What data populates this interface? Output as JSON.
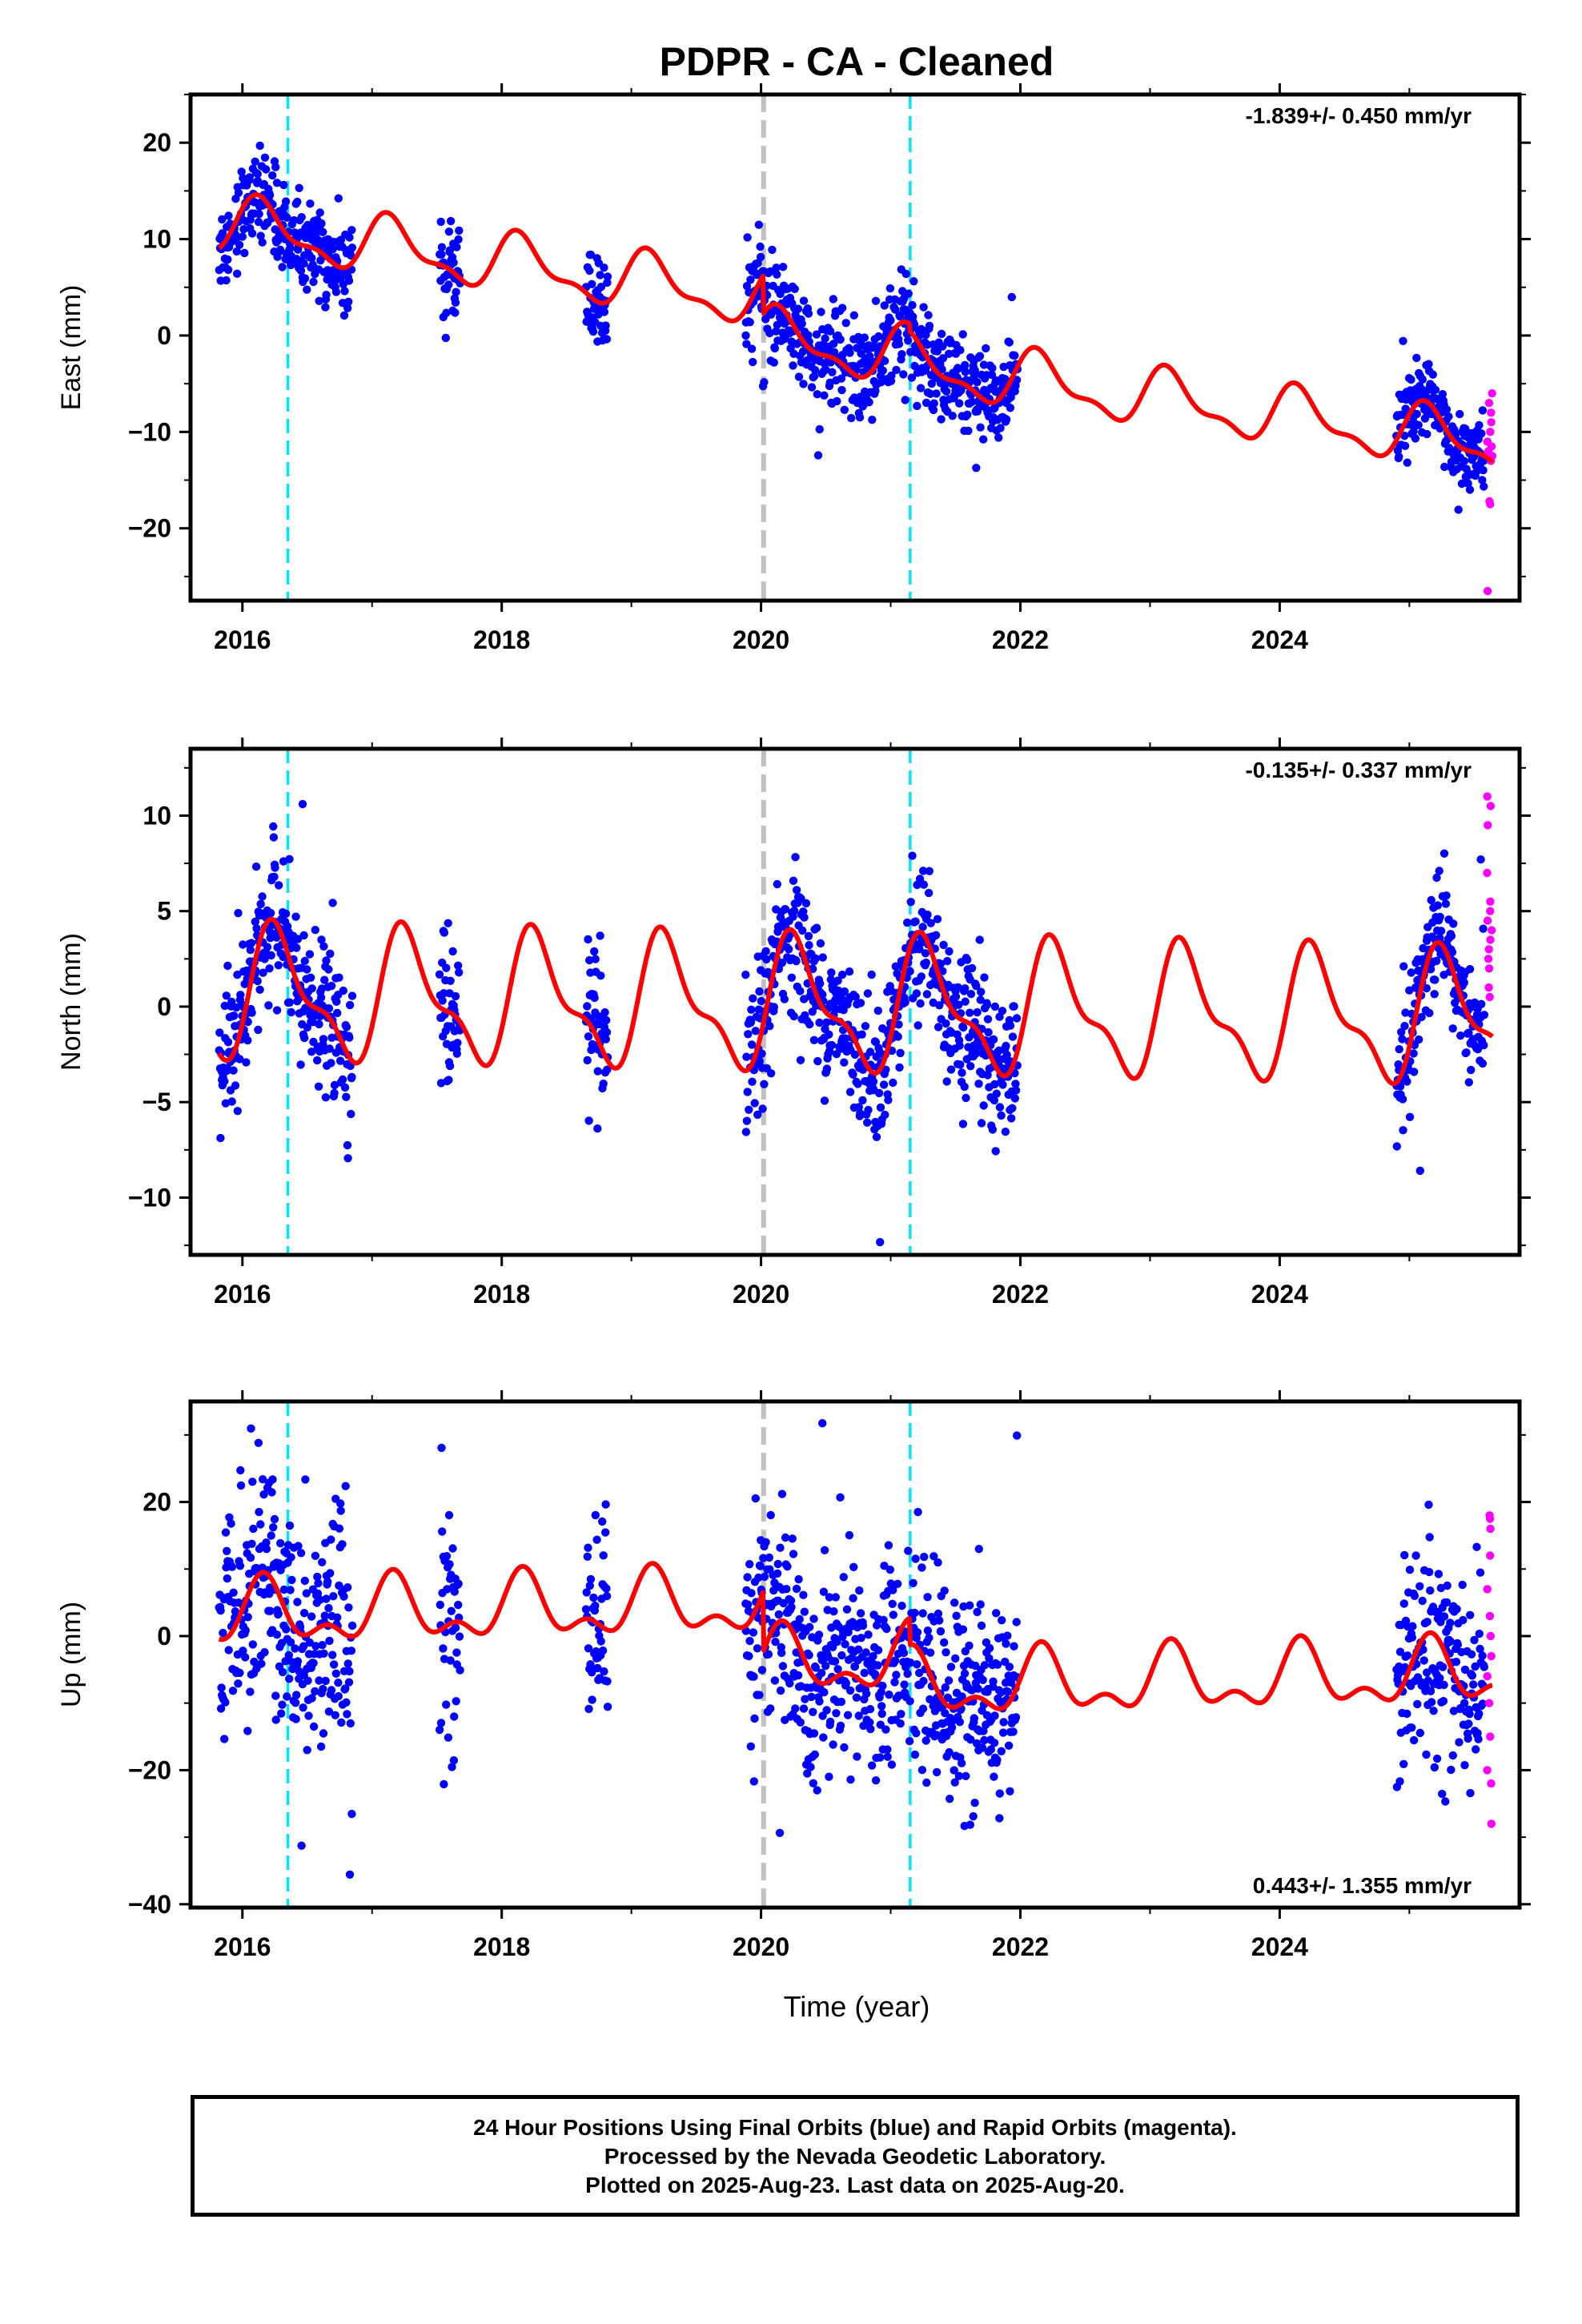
{
  "title": "PDPR  - CA - Cleaned",
  "x_axis": {
    "label": "Time (year)",
    "ticks": [
      "2016",
      "2018",
      "2020",
      "2022",
      "2024"
    ]
  },
  "colors": {
    "final_orbits": "#0000ff",
    "rapid_orbits": "#ff00ff",
    "model": "#ff0000",
    "event_cyan": "#00e5ff",
    "event_gray": "#c0c0c0"
  },
  "footer": {
    "line1": "24 Hour Positions Using Final Orbits (blue) and Rapid Orbits (magenta).",
    "line2": "Processed by the Nevada Geodetic Laboratory.",
    "line3": "Plotted on 2025-Aug-23. Last data on 2025-Aug-20."
  },
  "chart_data": [
    {
      "type": "scatter",
      "name": "east",
      "ylabel": "East (mm)",
      "rate_label": "-1.839+/- 0.450 mm/yr",
      "xlim": [
        2015.6,
        2025.85
      ],
      "ylim": [
        -27.5,
        25
      ],
      "yticks": [
        20,
        10,
        0,
        -10,
        -20
      ],
      "xticks": [
        2016,
        2018,
        2020,
        2022,
        2024
      ],
      "event_lines": {
        "cyan": [
          2016.35,
          2021.15
        ],
        "gray": [
          2020.02
        ]
      },
      "model": {
        "rate": -1.839,
        "ref_year": 2020.5,
        "ref_value": 0.5,
        "annual_sin": 2.2,
        "annual_cos": 1.5,
        "semi_sin": 1.0,
        "semi_cos": 0.5,
        "offsets": [
          {
            "year": 2020.02,
            "value": -4.0
          },
          {
            "year": 2021.15,
            "value": -0.8
          }
        ]
      },
      "segments": [
        {
          "start": 2015.82,
          "end": 2016.85,
          "scatter": 2.2
        },
        {
          "start": 2017.52,
          "end": 2017.68,
          "scatter": 2.2
        },
        {
          "start": 2018.65,
          "end": 2018.82,
          "scatter": 2.5
        },
        {
          "start": 2019.88,
          "end": 2021.98,
          "scatter": 2.4
        },
        {
          "start": 2024.9,
          "end": 2025.58,
          "scatter": 2.0
        }
      ],
      "rapid": {
        "start": 2025.6,
        "end": 2025.64,
        "values": [
          -6,
          -7,
          -8,
          -9,
          -10,
          -11,
          -12,
          -13,
          -11.5,
          -12.5,
          -17.2,
          -17.5,
          -26.5
        ]
      }
    },
    {
      "type": "scatter",
      "name": "north",
      "ylabel": "North (mm)",
      "rate_label": "-0.135+/- 0.337 mm/yr",
      "xlim": [
        2015.6,
        2025.85
      ],
      "ylim": [
        -13,
        13.5
      ],
      "yticks": [
        10,
        5,
        0,
        -5,
        -10
      ],
      "xticks": [
        2016,
        2018,
        2020,
        2022,
        2024
      ],
      "event_lines": {
        "cyan": [
          2016.35,
          2021.15
        ],
        "gray": [
          2020.02
        ]
      },
      "model": {
        "rate": -0.135,
        "ref_year": 2020.5,
        "ref_value": 0.0,
        "annual_sin": 3.0,
        "annual_cos": -0.6,
        "semi_sin": 0.9,
        "semi_cos": -0.9,
        "offsets": []
      },
      "segments": [
        {
          "start": 2015.82,
          "end": 2016.85,
          "scatter": 1.8
        },
        {
          "start": 2017.52,
          "end": 2017.68,
          "scatter": 2.2
        },
        {
          "start": 2018.65,
          "end": 2018.82,
          "scatter": 2.0
        },
        {
          "start": 2019.88,
          "end": 2021.98,
          "scatter": 1.8
        },
        {
          "start": 2024.9,
          "end": 2025.58,
          "scatter": 1.5
        }
      ],
      "rapid": {
        "start": 2025.6,
        "end": 2025.64,
        "values": [
          0.5,
          1,
          2,
          2.5,
          3,
          3.5,
          4,
          4.5,
          5,
          5.5,
          7,
          9.5,
          10.5,
          11
        ]
      }
    },
    {
      "type": "scatter",
      "name": "up",
      "ylabel": "Up (mm)",
      "rate_label": "0.443+/- 1.355 mm/yr",
      "xlim": [
        2015.6,
        2025.85
      ],
      "ylim": [
        -40.5,
        35
      ],
      "yticks": [
        20,
        0,
        -20,
        -40
      ],
      "xticks": [
        2016,
        2018,
        2020,
        2022,
        2024
      ],
      "event_lines": {
        "cyan": [
          2016.35,
          2021.15
        ],
        "gray": [
          2020.02
        ]
      },
      "model": {
        "rate": 0.443,
        "ref_year": 2020.5,
        "ref_value": -1.5,
        "annual_sin": 3.5,
        "annual_cos": 2.0,
        "semi_sin": 2.2,
        "semi_cos": -1.0,
        "offsets": [
          {
            "year": 2020.02,
            "value": -9.0
          },
          {
            "year": 2021.15,
            "value": -4.0
          }
        ]
      },
      "segments": [
        {
          "start": 2015.82,
          "end": 2016.85,
          "scatter": 9.0
        },
        {
          "start": 2017.52,
          "end": 2017.68,
          "scatter": 11.0
        },
        {
          "start": 2018.65,
          "end": 2018.82,
          "scatter": 9.0
        },
        {
          "start": 2019.88,
          "end": 2021.98,
          "scatter": 8.0
        },
        {
          "start": 2024.9,
          "end": 2025.58,
          "scatter": 8.0
        }
      ],
      "rapid": {
        "start": 2025.6,
        "end": 2025.64,
        "values": [
          -28,
          -20,
          -15,
          -10,
          -6,
          -3,
          0,
          3,
          7,
          12,
          16,
          17.5,
          18,
          -22
        ]
      }
    }
  ]
}
